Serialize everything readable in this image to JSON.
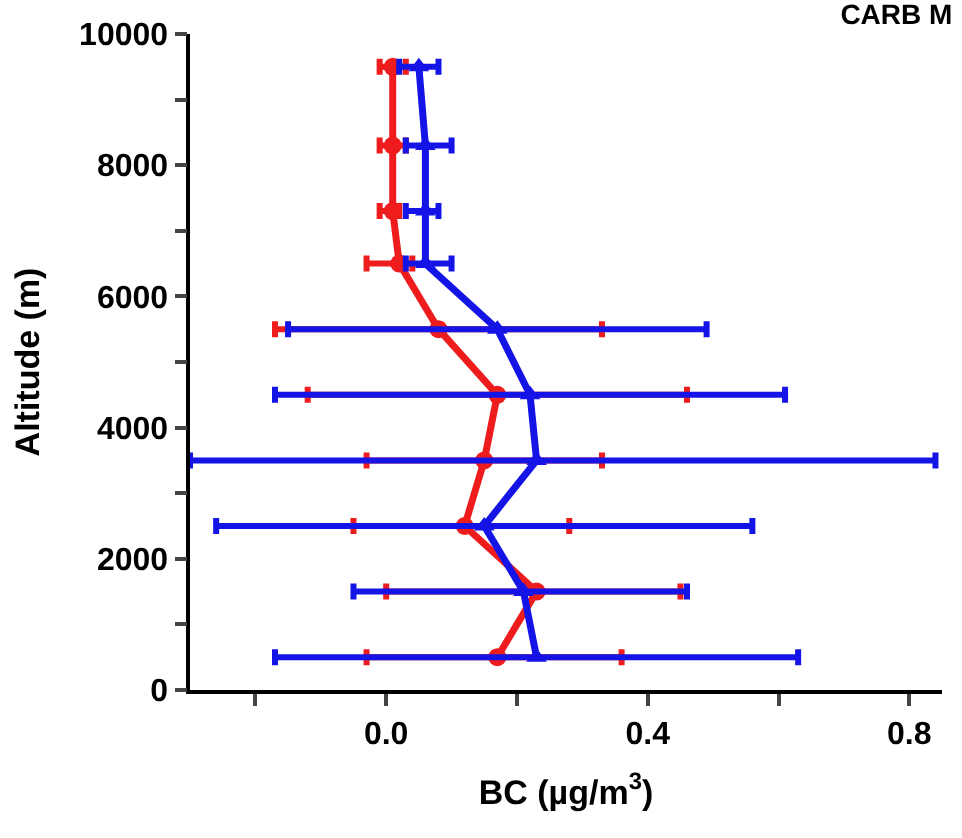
{
  "chart_data": {
    "type": "line",
    "title": "CARB M",
    "xlabel": "BC (µg/m$^{3}$)",
    "ylabel": "Altitude (m)",
    "xlim": [
      -0.3,
      0.85
    ],
    "ylim": [
      0,
      10000
    ],
    "xticks": [
      {
        "value": -0.2,
        "label": null
      },
      {
        "value": 0,
        "label": "0.0"
      },
      {
        "value": 0.2,
        "label": null
      },
      {
        "value": 0.4,
        "label": "0.4"
      },
      {
        "value": 0.6,
        "label": null
      },
      {
        "value": 0.8,
        "label": "0.8"
      }
    ],
    "yticks": [
      0,
      {
        "value": 1000,
        "label": null
      },
      2000,
      {
        "value": 3000,
        "label": null
      },
      4000,
      {
        "value": 5000,
        "label": null
      },
      6000,
      {
        "value": 7000,
        "label": null
      },
      8000,
      {
        "value": 9000,
        "label": null
      },
      10000
    ],
    "legend": false,
    "series": [
      {
        "color": "#ee1c1c",
        "marker": "circle",
        "x": [
          0.17,
          0.23,
          0.12,
          0.15,
          0.17,
          0.08,
          0.02,
          0.01,
          0.01,
          0.01
        ],
        "values": [
          500,
          1500,
          2500,
          3500,
          4500,
          5500,
          6500,
          7300,
          8300,
          9500
        ],
        "xerrors": [
          [
            -0.03,
            0.36
          ],
          [
            0.0,
            0.45
          ],
          [
            -0.05,
            0.28
          ],
          [
            -0.03,
            0.33
          ],
          [
            -0.12,
            0.46
          ],
          [
            -0.17,
            0.33
          ],
          [
            -0.03,
            0.04
          ],
          [
            -0.01,
            0.02
          ],
          [
            -0.01,
            0.03
          ],
          [
            -0.01,
            0.03
          ]
        ]
      },
      {
        "color": "#1414e6",
        "marker": "triangle",
        "x": [
          0.23,
          0.21,
          0.15,
          0.23,
          0.22,
          0.17,
          0.06,
          0.06,
          0.06,
          0.05
        ],
        "values": [
          500,
          1500,
          2500,
          3500,
          4500,
          5500,
          6500,
          7300,
          8300,
          9500
        ],
        "xerrors": [
          [
            -0.17,
            0.63
          ],
          [
            -0.05,
            0.46
          ],
          [
            -0.26,
            0.56
          ],
          [
            -0.3,
            0.84
          ],
          [
            -0.17,
            0.61
          ],
          [
            -0.15,
            0.49
          ],
          [
            0.03,
            0.1
          ],
          [
            0.03,
            0.08
          ],
          [
            0.03,
            0.1
          ],
          [
            0.02,
            0.08
          ]
        ]
      }
    ]
  }
}
